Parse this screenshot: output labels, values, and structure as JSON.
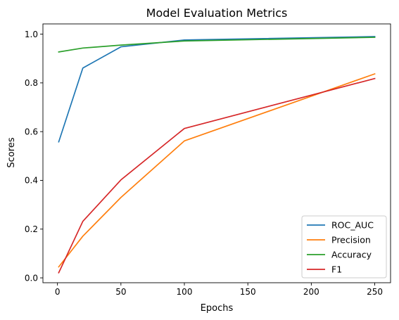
{
  "chart_data": {
    "type": "line",
    "title": "Model Evaluation Metrics",
    "xlabel": "Epochs",
    "ylabel": "Scores",
    "x": [
      1,
      20,
      50,
      100,
      250
    ],
    "xlim": [
      -11.45,
      262.45
    ],
    "ylim": [
      -0.02,
      1.042
    ],
    "xticks": [
      0,
      50,
      100,
      150,
      200,
      250
    ],
    "xtick_labels": [
      "0",
      "50",
      "100",
      "150",
      "200",
      "250"
    ],
    "yticks": [
      0.0,
      0.2,
      0.4,
      0.6,
      0.8,
      1.0
    ],
    "ytick_labels": [
      "0.0",
      "0.2",
      "0.4",
      "0.6",
      "0.8",
      "1.0"
    ],
    "grid": false,
    "legend_position": "lower-right",
    "series": [
      {
        "name": "ROC_AUC",
        "color": "#1f77b4",
        "values": [
          0.558,
          0.861,
          0.948,
          0.976,
          0.99
        ]
      },
      {
        "name": "Precision",
        "color": "#ff7f0e",
        "values": [
          0.045,
          0.171,
          0.33,
          0.562,
          0.837
        ]
      },
      {
        "name": "Accuracy",
        "color": "#2ca02c",
        "values": [
          0.927,
          0.943,
          0.955,
          0.972,
          0.987
        ]
      },
      {
        "name": "F1",
        "color": "#d62728",
        "values": [
          0.021,
          0.232,
          0.402,
          0.613,
          0.818
        ]
      }
    ]
  }
}
